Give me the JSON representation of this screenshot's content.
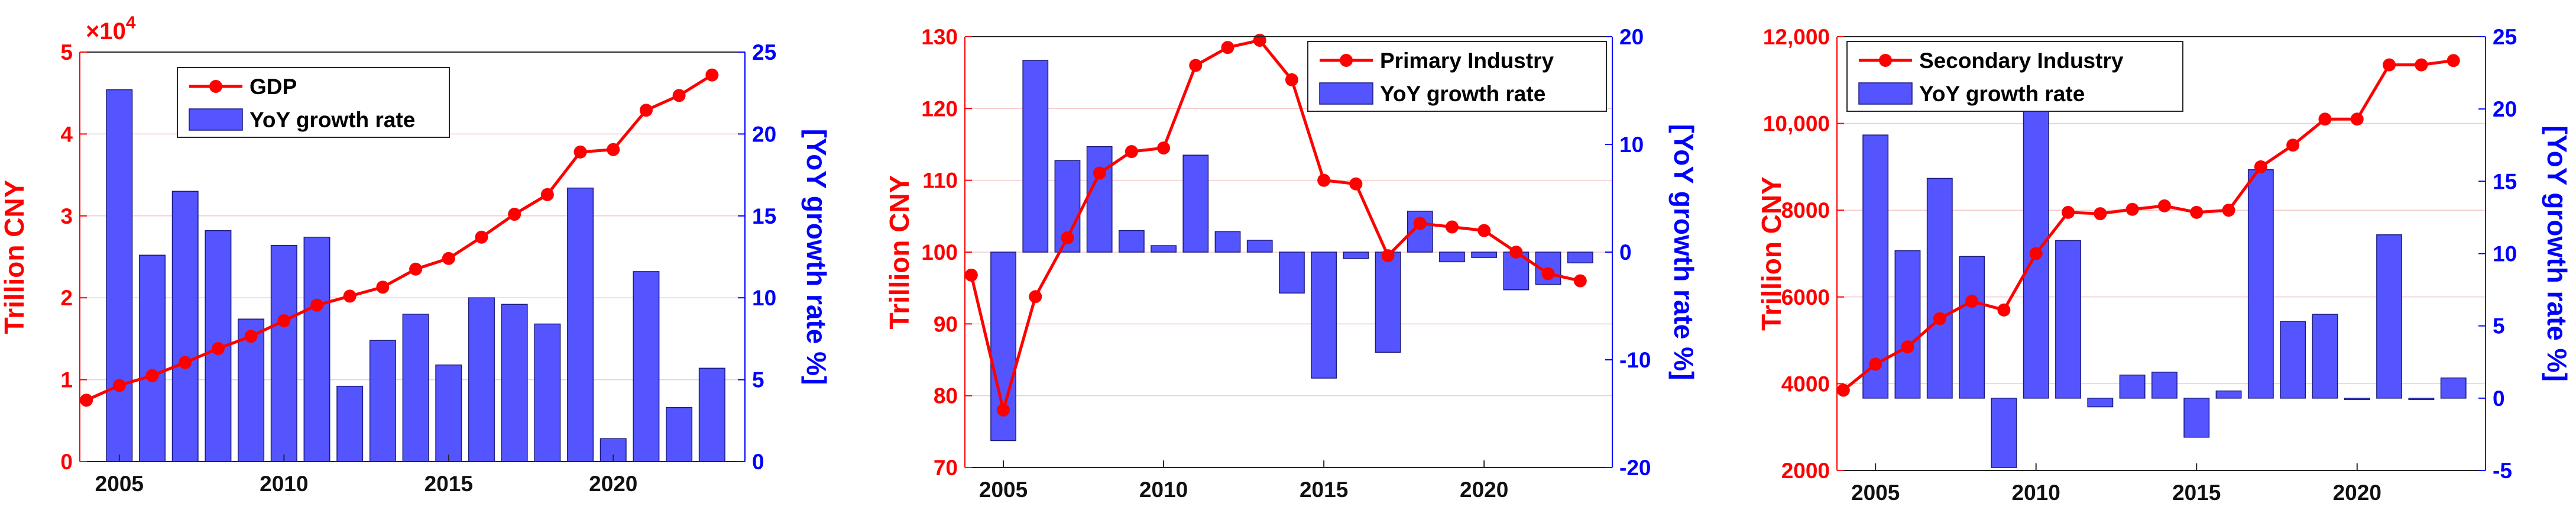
{
  "colors": {
    "gdp_line": "#ff0000",
    "bar": "#5555ff",
    "bar_stroke": "#1a1a80",
    "left_axis": "#ff0000",
    "right_axis": "#0000ff",
    "grid": "#f4c9c9"
  },
  "chart_data": [
    {
      "type": "bar+line",
      "title": "",
      "xlabel": "",
      "ylabel_left": "Trillion CNY",
      "ylabel_right": "[YoY growth rate %]",
      "exponent_label": {
        "base": "×10",
        "power": "4"
      },
      "x_ticks": [
        "2005",
        "2010",
        "2015",
        "2020"
      ],
      "x_tick_values": [
        2005,
        2010,
        2015,
        2020
      ],
      "xlim": [
        2003.8,
        2024.0
      ],
      "ylim_left": [
        0,
        5
      ],
      "ylim_right": [
        0,
        25
      ],
      "left_ticks": [
        "0",
        "1",
        "2",
        "3",
        "4",
        "5"
      ],
      "left_tick_values": [
        0,
        1,
        2,
        3,
        4,
        5
      ],
      "right_ticks": [
        "0",
        "5",
        "10",
        "15",
        "20",
        "25"
      ],
      "right_tick_values": [
        0,
        5,
        10,
        15,
        20,
        25
      ],
      "legend": {
        "line": "GDP",
        "bar": "YoY growth rate"
      },
      "years": [
        2004,
        2005,
        2006,
        2007,
        2008,
        2009,
        2010,
        2011,
        2012,
        2013,
        2014,
        2015,
        2016,
        2017,
        2018,
        2019,
        2020,
        2021,
        2022,
        2023
      ],
      "line_series": {
        "name": "GDP",
        "values": [
          0.75,
          0.93,
          1.05,
          1.21,
          1.38,
          1.53,
          1.72,
          1.91,
          2.02,
          2.13,
          2.35,
          2.48,
          2.74,
          3.02,
          3.26,
          3.78,
          3.81,
          4.29,
          4.47,
          4.72
        ]
      },
      "bar_series": {
        "name": "YoY growth rate",
        "values": [
          22.7,
          12.6,
          16.5,
          14.1,
          8.7,
          13.2,
          13.7,
          4.6,
          7.4,
          9.0,
          5.9,
          10.0,
          9.6,
          8.4,
          16.7,
          1.4,
          11.6,
          3.3,
          5.7
        ]
      },
      "bar_start_year": 2005
    },
    {
      "type": "bar+line",
      "title": "",
      "xlabel": "",
      "ylabel_left": "Trillion CNY",
      "ylabel_right": "[YoY growth rate %]",
      "x_ticks": [
        "2005",
        "2010",
        "2015",
        "2020"
      ],
      "x_tick_values": [
        2005,
        2010,
        2015,
        2020
      ],
      "xlim": [
        2003.8,
        2024.0
      ],
      "ylim_left": [
        70,
        130
      ],
      "ylim_right": [
        -20,
        20
      ],
      "left_ticks": [
        "70",
        "80",
        "90",
        "100",
        "110",
        "120",
        "130"
      ],
      "left_tick_values": [
        70,
        80,
        90,
        100,
        110,
        120,
        130
      ],
      "right_ticks": [
        "-20",
        "-10",
        "0",
        "10",
        "20"
      ],
      "right_tick_values": [
        -20,
        -10,
        0,
        10,
        20
      ],
      "legend": {
        "line": "Primary Industry",
        "bar": "YoY growth rate"
      },
      "years": [
        2004,
        2005,
        2006,
        2007,
        2008,
        2009,
        2010,
        2011,
        2012,
        2013,
        2014,
        2015,
        2016,
        2017,
        2018,
        2019,
        2020,
        2021,
        2022,
        2023
      ],
      "line_series": {
        "name": "Primary Industry",
        "values": [
          96.8,
          78.0,
          93.8,
          102.0,
          111.0,
          114.0,
          114.5,
          126.0,
          128.5,
          129.5,
          124.0,
          110.0,
          109.5,
          99.5,
          104.0,
          103.5,
          103.0,
          100.0,
          97.0,
          96.0
        ]
      },
      "bar_series": {
        "name": "YoY growth rate",
        "values": [
          -17.5,
          17.8,
          8.5,
          9.8,
          2.0,
          0.6,
          9.0,
          1.9,
          1.1,
          -3.8,
          -11.7,
          -0.6,
          -9.3,
          3.8,
          -0.9,
          -0.5,
          -3.5,
          -3.0,
          -1.0
        ]
      },
      "bar_start_year": 2005
    },
    {
      "type": "bar+line",
      "title": "",
      "xlabel": "",
      "ylabel_left": "Trillion CNY",
      "ylabel_right": "[YoY growth rate %]",
      "x_ticks": [
        "2005",
        "2010",
        "2015",
        "2020"
      ],
      "x_tick_values": [
        2005,
        2010,
        2015,
        2020
      ],
      "xlim": [
        2003.8,
        2024.0
      ],
      "ylim_left": [
        2000,
        12000
      ],
      "ylim_right": [
        -5,
        25
      ],
      "left_ticks": [
        "2000",
        "4000",
        "6000",
        "8000",
        "10,000",
        "12,000"
      ],
      "left_tick_values": [
        2000,
        4000,
        6000,
        8000,
        10000,
        12000
      ],
      "right_ticks": [
        "-5",
        "0",
        "5",
        "10",
        "15",
        "20",
        "25"
      ],
      "right_tick_values": [
        -5,
        0,
        5,
        10,
        15,
        20,
        25
      ],
      "legend": {
        "line": "Secondary Industry",
        "bar": "YoY growth rate"
      },
      "years": [
        2004,
        2005,
        2006,
        2007,
        2008,
        2009,
        2010,
        2011,
        2012,
        2013,
        2014,
        2015,
        2016,
        2017,
        2018,
        2019,
        2020,
        2021,
        2022,
        2023
      ],
      "line_series": {
        "name": "Secondary Industry",
        "values": [
          3850,
          4450,
          4850,
          5500,
          5900,
          5700,
          7000,
          7950,
          7920,
          8020,
          8100,
          7950,
          8000,
          9000,
          9500,
          10100,
          10100,
          11350,
          11350,
          11450
        ]
      },
      "bar_series": {
        "name": "YoY growth rate",
        "values": [
          18.2,
          10.2,
          15.2,
          9.8,
          -4.8,
          20.3,
          10.9,
          -0.6,
          1.6,
          1.8,
          -2.7,
          0.5,
          15.8,
          5.3,
          5.8,
          -0.1,
          11.3,
          -0.1,
          1.4
        ]
      },
      "bar_start_year": 2005
    }
  ]
}
